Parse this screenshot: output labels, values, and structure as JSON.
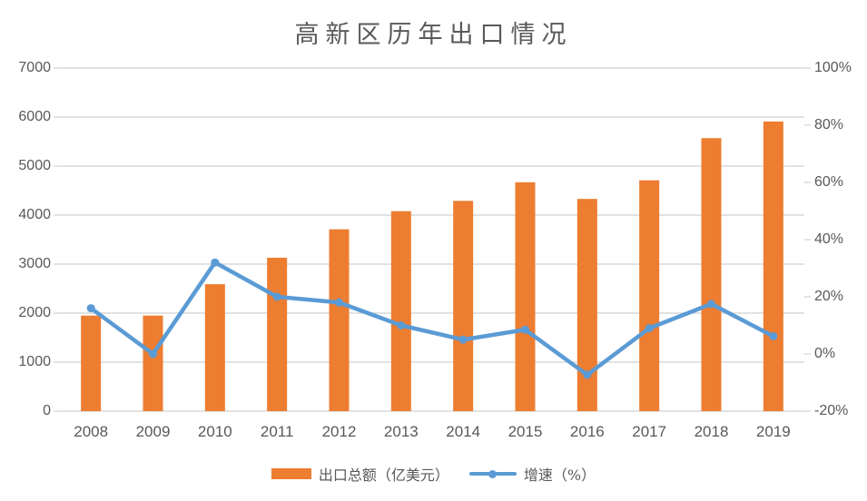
{
  "chart_data": {
    "type": "combo",
    "title": "高新区历年出口情况",
    "categories": [
      "2008",
      "2009",
      "2010",
      "2011",
      "2012",
      "2013",
      "2014",
      "2015",
      "2016",
      "2017",
      "2018",
      "2019"
    ],
    "series": [
      {
        "name": "出口总额（亿美元）",
        "type": "bar",
        "axis": "left",
        "color": "#ED7D31",
        "values": [
          1950,
          1950,
          2590,
          3130,
          3710,
          4080,
          4290,
          4670,
          4330,
          4710,
          5570,
          5910
        ]
      },
      {
        "name": "增速（%）",
        "type": "line",
        "axis": "right",
        "color": "#5B9BD5",
        "values": [
          16,
          0,
          32,
          20,
          18,
          10,
          5,
          8.5,
          -7.3,
          9,
          17.5,
          6.2
        ]
      }
    ],
    "left_axis": {
      "min": 0,
      "max": 7000,
      "step": 1000,
      "tick_labels": [
        "7000",
        "6000",
        "5000",
        "4000",
        "3000",
        "2000",
        "1000",
        "0"
      ]
    },
    "right_axis": {
      "min": -20,
      "max": 100,
      "step": 20,
      "tick_labels": [
        "100%",
        "80%",
        "60%",
        "40%",
        "20%",
        "0%",
        "-20%"
      ]
    },
    "grid": true,
    "legend_position": "bottom"
  },
  "colors": {
    "bar": "#ED7D31",
    "line": "#5B9BD5",
    "text": "#595959",
    "grid": "#D9D9D9"
  }
}
